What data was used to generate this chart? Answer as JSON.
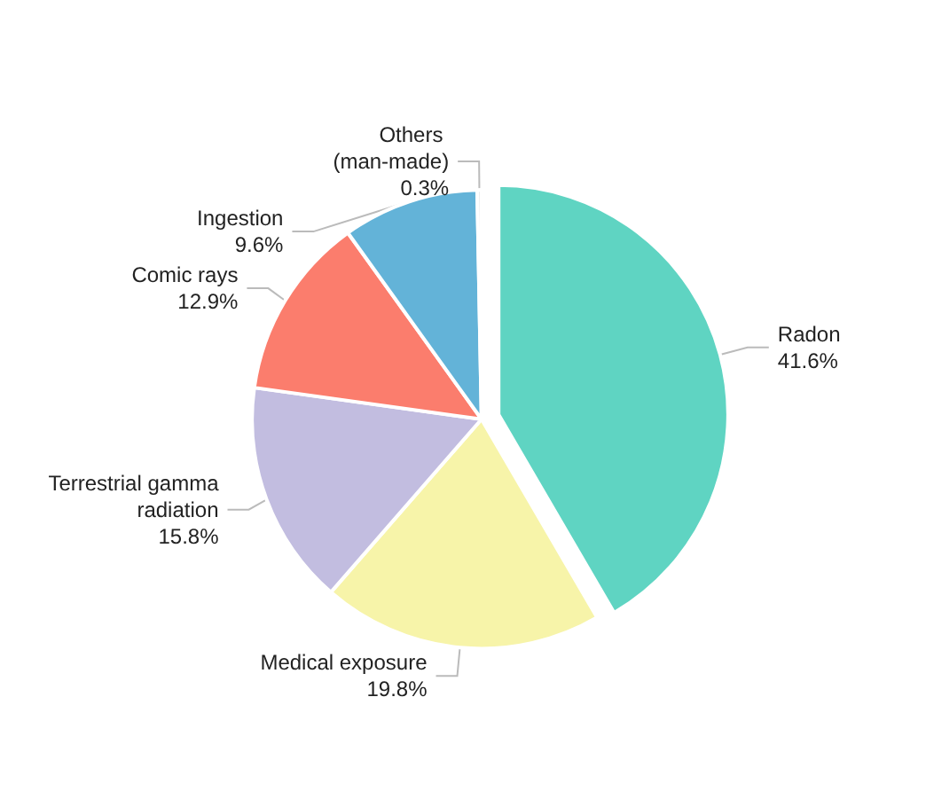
{
  "chart_data": {
    "type": "pie",
    "categories": [
      "Radon",
      "Medical exposure",
      "Terrestrial gamma radiation",
      "Comic rays",
      "Ingestion",
      "Others (man-made)"
    ],
    "values": [
      41.6,
      19.8,
      15.8,
      12.9,
      9.6,
      0.3
    ],
    "colors": [
      "#5fd4c2",
      "#f7f4a9",
      "#c2bde0",
      "#fb7d6d",
      "#63b3d8",
      "#e8e8e8"
    ],
    "value_labels": [
      "41.6%",
      "19.8%",
      "15.8%",
      "12.9%",
      "9.6%",
      "0.3%"
    ]
  }
}
